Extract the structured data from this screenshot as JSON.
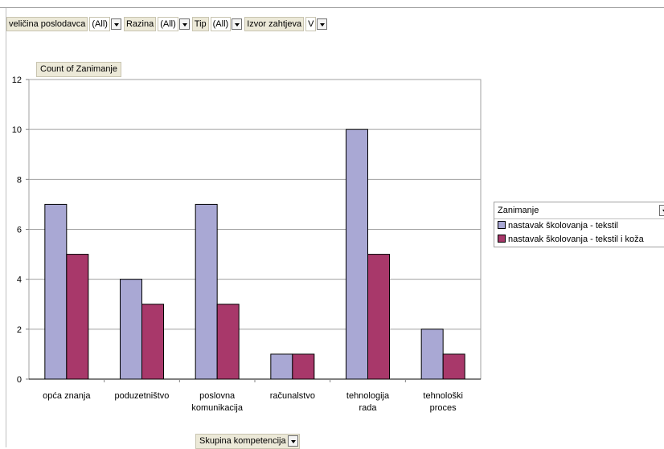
{
  "filters": [
    {
      "label": "veličina poslodavca",
      "value": "(All)"
    },
    {
      "label": "Razina",
      "value": "(All)"
    },
    {
      "label": "Tip",
      "value": "(All)"
    },
    {
      "label": "Izvor zahtjeva",
      "value": "V"
    }
  ],
  "data_field": "Count of Zanimanje",
  "row_field": "Skupina kompetencija",
  "legend": {
    "title": "Zanimanje",
    "items": [
      "nastavak školovanja - tekstil",
      "nastavak školovanja - tekstil i koža"
    ]
  },
  "colors": {
    "series1": "#a9a8d4",
    "series2": "#a8386a",
    "grid": "#a0a0a0",
    "axis": "#808080"
  },
  "chart_data": {
    "type": "bar",
    "categories": [
      "opća znanja",
      "poduzetništvo",
      "poslovna komunikacija",
      "računalstvo",
      "tehnologija rada",
      "tehnološki proces"
    ],
    "category_lines": [
      [
        "opća znanja"
      ],
      [
        "poduzetništvo"
      ],
      [
        "poslovna",
        "komunikacija"
      ],
      [
        "računalstvo"
      ],
      [
        "tehnologija",
        "rada"
      ],
      [
        "tehnološki",
        "proces"
      ]
    ],
    "series": [
      {
        "name": "nastavak školovanja - tekstil",
        "values": [
          7,
          4,
          7,
          1,
          10,
          2
        ]
      },
      {
        "name": "nastavak školovanja - tekstil i koža",
        "values": [
          5,
          3,
          3,
          1,
          5,
          1
        ]
      }
    ],
    "ylim": [
      0,
      12
    ],
    "yticks": [
      0,
      2,
      4,
      6,
      8,
      10,
      12
    ],
    "title": "",
    "xlabel": "",
    "ylabel": "",
    "grid": true,
    "legend_position": "right"
  }
}
